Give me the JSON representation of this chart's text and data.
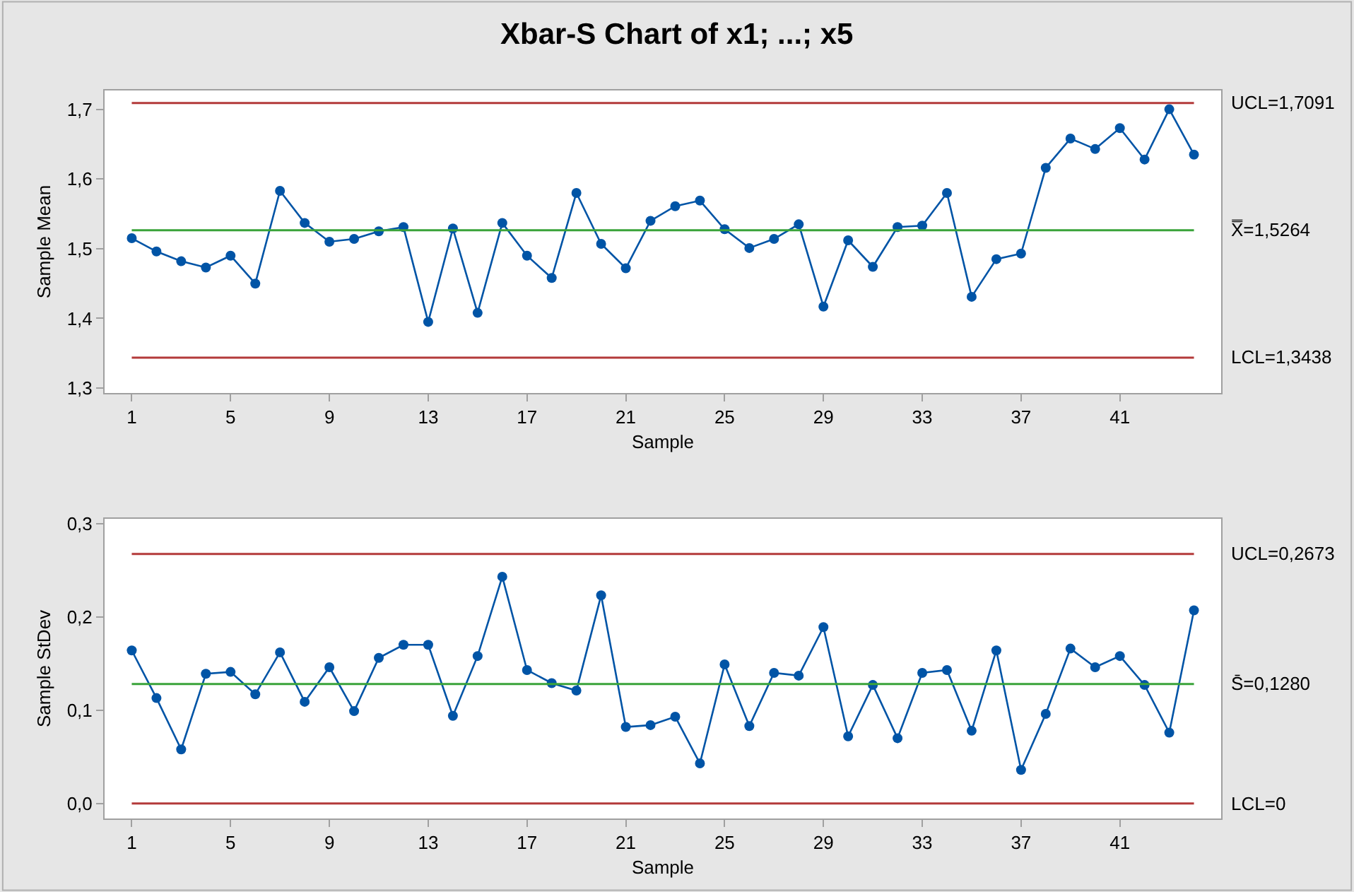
{
  "chart_data": [
    {
      "type": "line",
      "title": "Xbar-S Chart of x1; ...; x5",
      "xlabel": "Sample",
      "ylabel": "Sample Mean",
      "x": [
        1,
        2,
        3,
        4,
        5,
        6,
        7,
        8,
        9,
        10,
        11,
        12,
        13,
        14,
        15,
        16,
        17,
        18,
        19,
        20,
        21,
        22,
        23,
        24,
        25,
        26,
        27,
        28,
        29,
        30,
        31,
        32,
        33,
        34,
        35,
        36,
        37,
        38,
        39,
        40,
        41,
        42,
        43,
        44
      ],
      "series": [
        {
          "color": "#0054a6",
          "values": [
            1.515,
            1.496,
            1.482,
            1.473,
            1.49,
            1.45,
            1.583,
            1.537,
            1.51,
            1.514,
            1.525,
            1.531,
            1.395,
            1.529,
            1.408,
            1.537,
            1.49,
            1.458,
            1.58,
            1.507,
            1.472,
            1.54,
            1.561,
            1.569,
            1.528,
            1.501,
            1.514,
            1.535,
            1.417,
            1.512,
            1.474,
            1.531,
            1.533,
            1.58,
            1.431,
            1.485,
            1.493,
            1.616,
            1.658,
            1.643,
            1.673,
            1.628,
            1.7,
            1.635
          ]
        }
      ],
      "xlim": [
        -0.1,
        45.1
      ],
      "xticks": [
        1,
        5,
        9,
        13,
        17,
        21,
        25,
        29,
        33,
        37,
        41
      ],
      "ylim": [
        1.293,
        1.727
      ],
      "yticks": [
        {
          "value": 1.3,
          "label": "1,3"
        },
        {
          "value": 1.4,
          "label": "1,4"
        },
        {
          "value": 1.5,
          "label": "1,5"
        },
        {
          "value": 1.6,
          "label": "1,6"
        },
        {
          "value": 1.7,
          "label": "1,7"
        }
      ],
      "ref_lines": [
        {
          "axis": "y",
          "value": 1.7091,
          "label": "UCL=1,7091",
          "color": "#b33a3a"
        },
        {
          "axis": "y",
          "value": 1.5264,
          "label": "X̿=1,5264",
          "color": "#3aa33a"
        },
        {
          "axis": "y",
          "value": 1.3438,
          "label": "LCL=1,3438",
          "color": "#b33a3a"
        }
      ],
      "marker": "circle",
      "line_style": "solid"
    },
    {
      "type": "line",
      "xlabel": "Sample",
      "ylabel": "Sample StDev",
      "x": [
        1,
        2,
        3,
        4,
        5,
        6,
        7,
        8,
        9,
        10,
        11,
        12,
        13,
        14,
        15,
        16,
        17,
        18,
        19,
        20,
        21,
        22,
        23,
        24,
        25,
        26,
        27,
        28,
        29,
        30,
        31,
        32,
        33,
        34,
        35,
        36,
        37,
        38,
        39,
        40,
        41,
        42,
        43,
        44
      ],
      "series": [
        {
          "color": "#0054a6",
          "values": [
            0.164,
            0.113,
            0.058,
            0.139,
            0.141,
            0.117,
            0.162,
            0.109,
            0.146,
            0.099,
            0.156,
            0.17,
            0.17,
            0.094,
            0.158,
            0.243,
            0.143,
            0.129,
            0.121,
            0.223,
            0.082,
            0.084,
            0.093,
            0.043,
            0.149,
            0.083,
            0.14,
            0.137,
            0.189,
            0.072,
            0.127,
            0.07,
            0.14,
            0.143,
            0.078,
            0.164,
            0.036,
            0.096,
            0.166,
            0.146,
            0.158,
            0.127,
            0.076,
            0.207
          ]
        }
      ],
      "xlim": [
        -0.1,
        45.1
      ],
      "xticks": [
        1,
        5,
        9,
        13,
        17,
        21,
        25,
        29,
        33,
        37,
        41
      ],
      "ylim": [
        -0.016,
        0.305
      ],
      "yticks": [
        {
          "value": 0.0,
          "label": "0,0"
        },
        {
          "value": 0.1,
          "label": "0,1"
        },
        {
          "value": 0.2,
          "label": "0,2"
        },
        {
          "value": 0.3,
          "label": "0,3"
        }
      ],
      "ref_lines": [
        {
          "axis": "y",
          "value": 0.2673,
          "label": "UCL=0,2673",
          "color": "#b33a3a"
        },
        {
          "axis": "y",
          "value": 0.128,
          "label": "S̄=0,1280",
          "color": "#3aa33a"
        },
        {
          "axis": "y",
          "value": 0,
          "label": "LCL=0",
          "color": "#b33a3a"
        }
      ],
      "marker": "circle",
      "line_style": "solid"
    }
  ]
}
